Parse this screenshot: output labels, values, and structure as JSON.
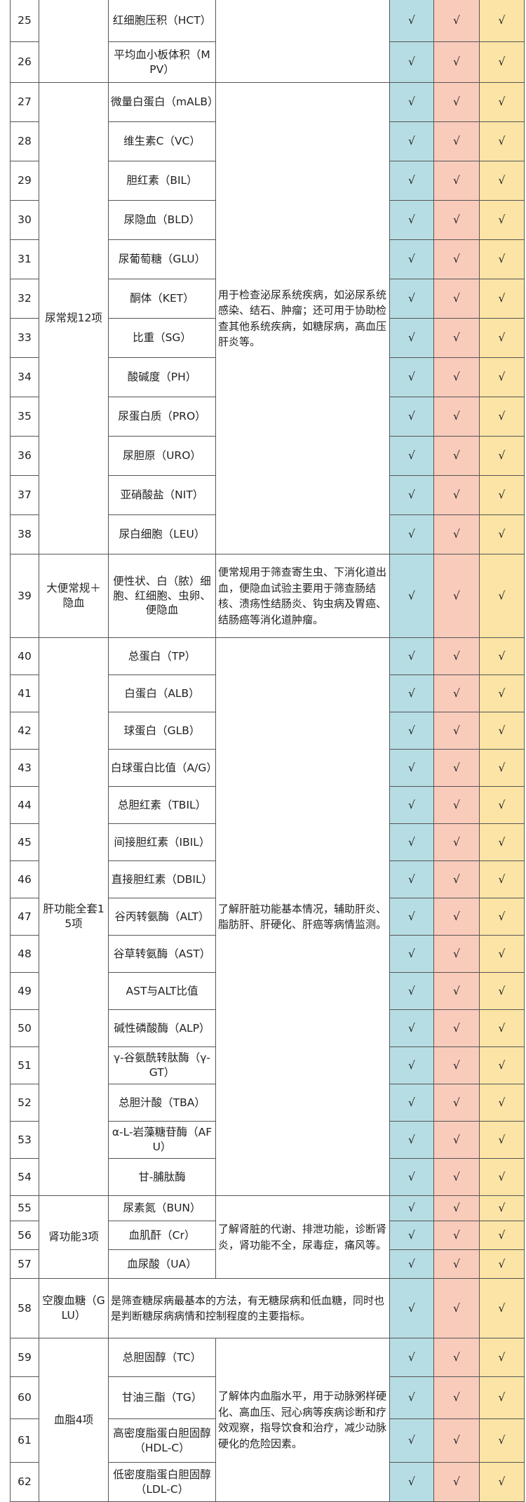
{
  "table": {
    "groups": [
      {
        "rows": [
          {
            "num": 25,
            "item": "红细胞压积（HCT）",
            "checks": [
              "√",
              "√",
              "√"
            ]
          },
          {
            "num": 26,
            "item": "平均血小板体积（MPV）",
            "checks": [
              "√",
              "√",
              "√"
            ]
          }
        ]
      },
      {
        "category": "尿常规12项",
        "description": "用于检查泌尿系统疾病，如泌尿系统感染、结石、肿瘤；还可用于协助检查其他系统疾病，如糖尿病，高血压肝炎等。",
        "rows": [
          {
            "num": 27,
            "item": "微量白蛋白（mALB）",
            "checks": [
              "√",
              "√",
              "√"
            ]
          },
          {
            "num": 28,
            "item": "维生素C（VC）",
            "checks": [
              "√",
              "√",
              "√"
            ]
          },
          {
            "num": 29,
            "item": "胆红素（BIL）",
            "checks": [
              "√",
              "√",
              "√"
            ]
          },
          {
            "num": 30,
            "item": "尿隐血（BLD）",
            "checks": [
              "√",
              "√",
              "√"
            ]
          },
          {
            "num": 31,
            "item": "尿葡萄糖（GLU）",
            "checks": [
              "√",
              "√",
              "√"
            ]
          },
          {
            "num": 32,
            "item": "酮体（KET）",
            "checks": [
              "√",
              "√",
              "√"
            ]
          },
          {
            "num": 33,
            "item": "比重（SG）",
            "checks": [
              "√",
              "√",
              "√"
            ]
          },
          {
            "num": 34,
            "item": "酸碱度（PH）",
            "checks": [
              "√",
              "√",
              "√"
            ]
          },
          {
            "num": 35,
            "item": "尿蛋白质（PRO）",
            "checks": [
              "√",
              "√",
              "√"
            ]
          },
          {
            "num": 36,
            "item": "尿胆原（URO）",
            "checks": [
              "√",
              "√",
              "√"
            ]
          },
          {
            "num": 37,
            "item": "亚硝酸盐（NIT）",
            "checks": [
              "√",
              "√",
              "√"
            ]
          },
          {
            "num": 38,
            "item": "尿白细胞（LEU）",
            "checks": [
              "√",
              "√",
              "√"
            ]
          }
        ]
      },
      {
        "category": "大便常规＋隐血",
        "description": "便常规用于筛查寄生虫、下消化道出血，便隐血试验主要用于筛查肠结核、溃疡性结肠炎、钩虫病及胃癌、结肠癌等消化道肿瘤。",
        "rows": [
          {
            "num": 39,
            "item": "便性状、白（脓）细胞、红细胞、虫卵、便隐血",
            "checks": [
              "√",
              "√",
              "√"
            ]
          }
        ]
      },
      {
        "category": "肝功能全套15项",
        "description": "了解肝脏功能基本情况，辅助肝炎、脂肪肝、肝硬化、肝癌等病情监测。",
        "rows": [
          {
            "num": 40,
            "item": "总蛋白（TP）",
            "checks": [
              "√",
              "√",
              "√"
            ]
          },
          {
            "num": 41,
            "item": "白蛋白（ALB）",
            "checks": [
              "√",
              "√",
              "√"
            ]
          },
          {
            "num": 42,
            "item": "球蛋白（GLB）",
            "checks": [
              "√",
              "√",
              "√"
            ]
          },
          {
            "num": 43,
            "item": "白球蛋白比值（A/G）",
            "checks": [
              "√",
              "√",
              "√"
            ]
          },
          {
            "num": 44,
            "item": "总胆红素（TBIL）",
            "checks": [
              "√",
              "√",
              "√"
            ]
          },
          {
            "num": 45,
            "item": "间接胆红素（IBIL）",
            "checks": [
              "√",
              "√",
              "√"
            ]
          },
          {
            "num": 46,
            "item": "直接胆红素（DBIL）",
            "checks": [
              "√",
              "√",
              "√"
            ]
          },
          {
            "num": 47,
            "item": "谷丙转氨酶（ALT）",
            "checks": [
              "√",
              "√",
              "√"
            ]
          },
          {
            "num": 48,
            "item": "谷草转氨酶（AST）",
            "checks": [
              "√",
              "√",
              "√"
            ]
          },
          {
            "num": 49,
            "item": "AST与ALT比值",
            "checks": [
              "√",
              "√",
              "√"
            ]
          },
          {
            "num": 50,
            "item": "碱性磷酸酶（ALP）",
            "checks": [
              "√",
              "√",
              "√"
            ]
          },
          {
            "num": 51,
            "item": "γ-谷氨酰转肽酶（γ-GT）",
            "checks": [
              "√",
              "√",
              "√"
            ]
          },
          {
            "num": 52,
            "item": "总胆汁酸（TBA）",
            "checks": [
              "√",
              "√",
              "√"
            ]
          },
          {
            "num": 53,
            "item": "α-L-岩藻糖苷酶（AFU）",
            "checks": [
              "√",
              "√",
              "√"
            ]
          },
          {
            "num": 54,
            "item": "甘-脯肽酶",
            "checks": [
              "√",
              "√",
              "√"
            ]
          }
        ]
      },
      {
        "category": "肾功能3项",
        "description": "了解肾脏的代谢、排泄功能，诊断肾炎，肾功能不全，尿毒症，痛风等。",
        "rows": [
          {
            "num": 55,
            "item": "尿素氮（BUN）",
            "checks": [
              "√",
              "√",
              "√"
            ]
          },
          {
            "num": 56,
            "item": "血肌酐（Cr）",
            "checks": [
              "√",
              "√",
              "√"
            ]
          },
          {
            "num": 57,
            "item": "血尿酸（UA）",
            "checks": [
              "√",
              "√",
              "√"
            ]
          }
        ]
      },
      {
        "category": "空腹血糖（GLU）",
        "description": "是筛查糖尿病最基本的方法，有无糖尿病和低血糖，同时也是判断糖尿病病情和控制程度的主要指标。",
        "rows": [
          {
            "num": 58,
            "checks": [
              "√",
              "√",
              "√"
            ]
          }
        ]
      },
      {
        "category": "血脂4项",
        "description": "了解体内血脂水平，用于动脉粥样硬化、高血压、冠心病等疾病诊断和疗效观察，指导饮食和治疗，减少动脉硬化的危险因素。",
        "rows": [
          {
            "num": 59,
            "item": "总胆固醇（TC）",
            "checks": [
              "√",
              "√",
              "√"
            ]
          },
          {
            "num": 60,
            "item": "甘油三酯（TG）",
            "checks": [
              "√",
              "√",
              "√"
            ]
          },
          {
            "num": 61,
            "item": "高密度脂蛋白胆固醇（HDL-C）",
            "checks": [
              "√",
              "√",
              "√"
            ]
          },
          {
            "num": 62,
            "item": "低密度脂蛋白胆固醇（LDL-C）",
            "checks": [
              "√",
              "√",
              "√"
            ]
          }
        ]
      }
    ]
  }
}
